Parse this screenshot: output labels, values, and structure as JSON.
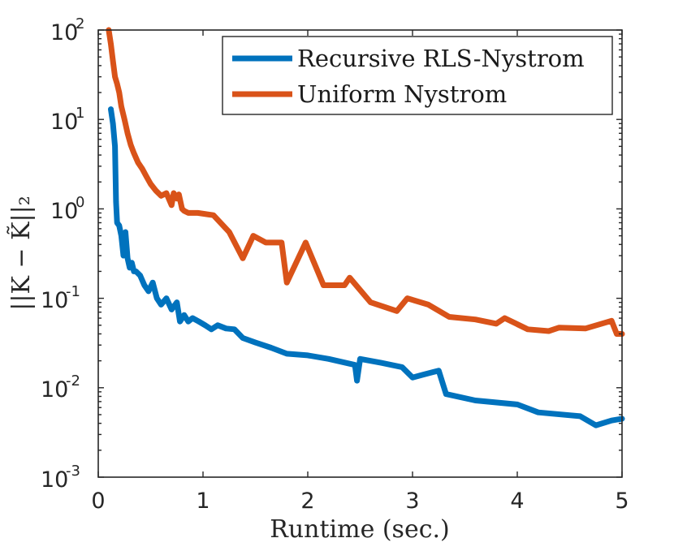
{
  "chart_data": {
    "type": "line",
    "title": "",
    "xlabel": "Runtime (sec.)",
    "ylabel": "||K − K̃||₂",
    "xlim": [
      0,
      5
    ],
    "ylim": [
      0.001,
      100
    ],
    "yscale": "log",
    "grid": false,
    "legend_position": "top-right",
    "x_ticks": [
      "0",
      "1",
      "2",
      "3",
      "4",
      "5"
    ],
    "y_ticks": [
      {
        "base": "10",
        "exp": "2"
      },
      {
        "base": "10",
        "exp": "1"
      },
      {
        "base": "10",
        "exp": "0"
      },
      {
        "base": "10",
        "exp": "-1"
      },
      {
        "base": "10",
        "exp": "-2"
      },
      {
        "base": "10",
        "exp": "-3"
      }
    ],
    "series": [
      {
        "name": "Recursive RLS-Nystrom",
        "color": "#0072BD",
        "x": [
          0.12,
          0.14,
          0.16,
          0.17,
          0.18,
          0.2,
          0.22,
          0.24,
          0.26,
          0.28,
          0.3,
          0.32,
          0.34,
          0.36,
          0.4,
          0.44,
          0.48,
          0.52,
          0.56,
          0.6,
          0.65,
          0.7,
          0.75,
          0.78,
          0.82,
          0.86,
          0.9,
          0.96,
          1.02,
          1.08,
          1.14,
          1.22,
          1.3,
          1.38,
          1.5,
          1.65,
          1.8,
          2.0,
          2.2,
          2.45,
          2.47,
          2.5,
          2.7,
          2.9,
          3.0,
          3.1,
          3.2,
          3.25,
          3.32,
          3.6,
          4.0,
          4.2,
          4.6,
          4.75,
          4.9,
          5.0
        ],
        "values": [
          13.0,
          9.0,
          5.0,
          1.2,
          0.7,
          0.65,
          0.5,
          0.3,
          0.55,
          0.28,
          0.22,
          0.25,
          0.2,
          0.2,
          0.18,
          0.14,
          0.12,
          0.15,
          0.1,
          0.085,
          0.1,
          0.075,
          0.09,
          0.055,
          0.065,
          0.055,
          0.06,
          0.055,
          0.05,
          0.045,
          0.05,
          0.046,
          0.045,
          0.036,
          0.032,
          0.028,
          0.024,
          0.023,
          0.021,
          0.018,
          0.012,
          0.021,
          0.019,
          0.017,
          0.013,
          0.014,
          0.015,
          0.0155,
          0.0085,
          0.0072,
          0.0065,
          0.0053,
          0.0048,
          0.0038,
          0.0043,
          0.0045
        ]
      },
      {
        "name": "Uniform Nystrom",
        "color": "#D95319",
        "x": [
          0.1,
          0.12,
          0.14,
          0.16,
          0.18,
          0.2,
          0.22,
          0.25,
          0.28,
          0.31,
          0.34,
          0.38,
          0.42,
          0.46,
          0.5,
          0.55,
          0.6,
          0.65,
          0.7,
          0.72,
          0.75,
          0.77,
          0.8,
          0.82,
          0.86,
          0.95,
          1.1,
          1.25,
          1.38,
          1.48,
          1.6,
          1.75,
          1.8,
          1.98,
          2.15,
          2.35,
          2.4,
          2.6,
          2.85,
          2.95,
          3.15,
          3.35,
          3.6,
          3.8,
          3.88,
          4.1,
          4.3,
          4.4,
          4.65,
          4.9,
          4.95,
          5.0
        ],
        "values": [
          100.0,
          70.0,
          45.0,
          30.0,
          25.0,
          20.0,
          14.0,
          10.0,
          7.0,
          5.2,
          4.2,
          3.3,
          2.8,
          2.3,
          1.9,
          1.6,
          1.4,
          1.5,
          1.1,
          1.5,
          1.3,
          1.45,
          1.0,
          0.95,
          0.9,
          0.9,
          0.85,
          0.55,
          0.28,
          0.5,
          0.42,
          0.42,
          0.15,
          0.42,
          0.14,
          0.14,
          0.17,
          0.09,
          0.072,
          0.1,
          0.085,
          0.062,
          0.058,
          0.052,
          0.06,
          0.045,
          0.043,
          0.047,
          0.046,
          0.056,
          0.04,
          0.04
        ]
      }
    ]
  }
}
